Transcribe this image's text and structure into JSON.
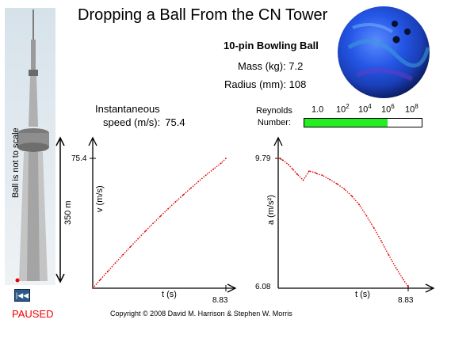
{
  "title": "Dropping a Ball From the CN Tower",
  "ball": {
    "name": "10-pin Bowling Ball",
    "mass_label": "Mass (kg):",
    "mass_value": "7.2",
    "radius_label": "Radius (mm):",
    "radius_value": "108"
  },
  "speed": {
    "label_line1": "Instantaneous",
    "label_line2": "speed (m/s):",
    "value": "75.4"
  },
  "reynolds": {
    "label_line1": "Reynolds",
    "label_line2": "Number:",
    "ticks": [
      {
        "base": "1.0",
        "exp": ""
      },
      {
        "base": "10",
        "exp": "2"
      },
      {
        "base": "10",
        "exp": "4"
      },
      {
        "base": "10",
        "exp": "6"
      },
      {
        "base": "10",
        "exp": "8"
      }
    ],
    "fill_fraction": 0.71,
    "fill_color": "#22ee22"
  },
  "tower": {
    "scale_note": "Ball is not to scale",
    "height_label": "350 m"
  },
  "controls": {
    "rewind_icon": "rewind-icon",
    "status": "PAUSED"
  },
  "copyright": "Copyright  © 2008 David M. Harrison & Stephen W. Morris",
  "chart_data": [
    {
      "type": "line",
      "ylabel": "v (m/s)",
      "xlabel": "t (s)",
      "x_tick_label": "8.83",
      "y_tick_label": "75.4",
      "xlim": [
        0,
        8.83
      ],
      "ylim": [
        0,
        75.4
      ],
      "series": [
        {
          "color": "#dd0000",
          "x": [
            0,
            0.5,
            1,
            1.5,
            2,
            2.5,
            3,
            3.5,
            4,
            4.5,
            5,
            5.5,
            6,
            6.5,
            7,
            7.5,
            8,
            8.5,
            8.83
          ],
          "y": [
            0,
            4.9,
            9.8,
            14.6,
            19.4,
            24.1,
            28.7,
            33.2,
            37.6,
            41.9,
            46.1,
            50.2,
            54.2,
            58.1,
            61.9,
            65.6,
            69.1,
            72.5,
            75.4
          ]
        }
      ]
    },
    {
      "type": "line",
      "ylabel": "a (m/s²)",
      "xlabel": "t (s)",
      "x_tick_label": "8.83",
      "y_tick_labels": [
        "9.79",
        "6.08"
      ],
      "xlim": [
        0,
        8.83
      ],
      "ylim": [
        6.08,
        9.79
      ],
      "series": [
        {
          "color": "#dd0000",
          "x": [
            0,
            0.3,
            0.7,
            1.0,
            1.3,
            1.7,
            2.1,
            2.5,
            2.6,
            3.0,
            3.5,
            4.0,
            4.5,
            5.0,
            5.5,
            6.0,
            6.5,
            7.0,
            7.5,
            8.0,
            8.5,
            8.83
          ],
          "y": [
            9.79,
            9.74,
            9.61,
            9.47,
            9.33,
            9.16,
            9.42,
            9.38,
            9.35,
            9.3,
            9.18,
            9.05,
            8.9,
            8.7,
            8.45,
            8.13,
            7.78,
            7.4,
            7.0,
            6.62,
            6.28,
            6.08
          ]
        }
      ]
    }
  ]
}
